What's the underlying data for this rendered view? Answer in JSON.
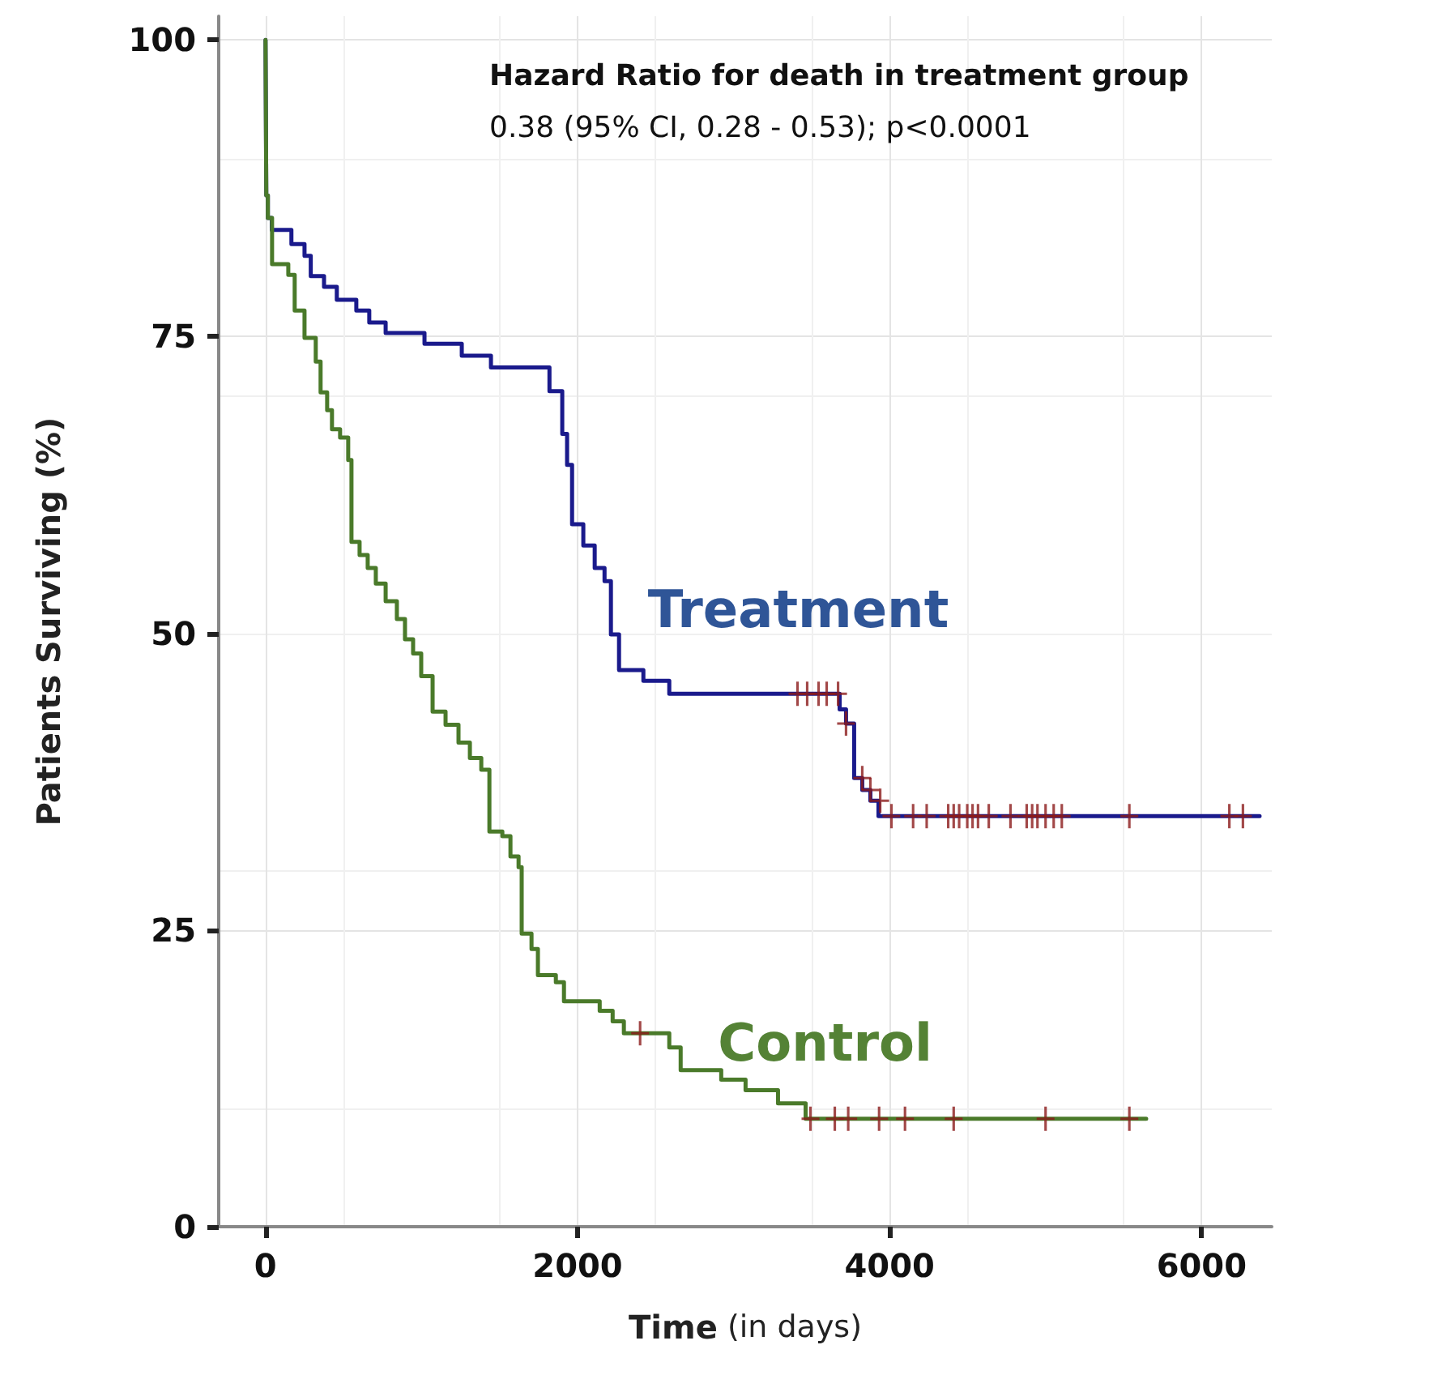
{
  "chart_data": {
    "type": "step",
    "xlabel": "Time (in days)",
    "ylabel": "Patients Surviving (%)",
    "annotations": [
      "Hazard Ratio for death in treatment group",
      "0.38 (95% CI, 0.28 - 0.53); p<0.0001"
    ],
    "xlim": [
      -300,
      6450
    ],
    "xticks": [
      0,
      2000,
      4000,
      6000
    ],
    "ylim": [
      0,
      102
    ],
    "yticks": [
      0,
      25,
      50,
      75,
      100
    ],
    "grid": true,
    "legend": false,
    "marker": "none",
    "line_style": "solid",
    "series": [
      {
        "name": "Treatment",
        "color": "#1a1a8c",
        "x": [
          0,
          5,
          15,
          40,
          166,
          250,
          290,
          375,
          457,
          582,
          665,
          770,
          1019,
          1258,
          1445,
          1820,
          1902,
          1933,
          1965,
          2037,
          2110,
          2173,
          2214,
          2266,
          2422,
          2588,
          3680,
          3721,
          3773,
          3825,
          3877,
          3929,
          3992,
          6372
        ],
        "values": [
          100,
          86.9,
          85,
          84,
          82.8,
          81.8,
          80.1,
          79.2,
          78.1,
          77.2,
          76.2,
          75.3,
          74.4,
          73.4,
          72.4,
          70.4,
          66.8,
          64.2,
          59.2,
          57.4,
          55.5,
          54.4,
          49.9,
          46.9,
          46,
          44.9,
          43.6,
          42.4,
          37.8,
          36.8,
          35.9,
          34.6,
          34.6,
          34.6
        ]
      },
      {
        "name": "Control",
        "color": "#4a7a2a",
        "x": [
          0,
          5,
          15,
          42,
          146,
          187,
          250,
          322,
          353,
          395,
          426,
          478,
          530,
          551,
          603,
          655,
          707,
          770,
          842,
          894,
          946,
          998,
          1071,
          1154,
          1237,
          1310,
          1383,
          1435,
          1518,
          1570,
          1622,
          1642,
          1705,
          1746,
          1861,
          1913,
          2142,
          2225,
          2297,
          2588,
          2661,
          2921,
          3077,
          3285,
          3462,
          5645
        ],
        "values": [
          100,
          86.9,
          85,
          81.1,
          80.2,
          77.2,
          74.9,
          72.9,
          70.3,
          68.8,
          67.2,
          66.5,
          64.6,
          57.7,
          56.6,
          55.5,
          54.2,
          52.7,
          51.2,
          49.5,
          48.3,
          46.4,
          43.4,
          42.3,
          40.8,
          39.5,
          38.5,
          33.3,
          32.9,
          31.2,
          30.3,
          24.7,
          23.4,
          21.2,
          20.6,
          19,
          18.2,
          17.3,
          16.3,
          15.1,
          13.2,
          12.4,
          11.5,
          10.4,
          9.1,
          9.1
        ]
      },
      {
        "type": "scatter",
        "marker": "cross",
        "color": "#8b1a1a",
        "x": [
          3410,
          3472,
          3545,
          3597,
          3670,
          3721,
          3825,
          3877,
          3940,
          4012,
          4151,
          4238,
          4376,
          4411,
          4446,
          4498,
          4532,
          4567,
          4636,
          4775,
          4879,
          4914,
          4948,
          5000,
          5052,
          5104,
          5537,
          6178,
          6265
        ],
        "values": [
          44.9,
          44.9,
          44.9,
          44.9,
          44.9,
          42.4,
          37.8,
          36.8,
          35.9,
          34.6,
          34.6,
          34.6,
          34.6,
          34.6,
          34.6,
          34.6,
          34.6,
          34.6,
          34.6,
          34.6,
          34.6,
          34.6,
          34.6,
          34.6,
          34.6,
          34.6,
          34.6,
          34.6,
          34.6
        ]
      },
      {
        "type": "scatter",
        "marker": "cross",
        "color": "#8b1a1a",
        "x": [
          2401,
          3493,
          3649,
          3735,
          3933,
          4099,
          4411,
          5000,
          5537
        ],
        "values": [
          16.3,
          9.1,
          9.1,
          9.1,
          9.1,
          9.1,
          9.1,
          9.1,
          9.1
        ]
      }
    ]
  }
}
